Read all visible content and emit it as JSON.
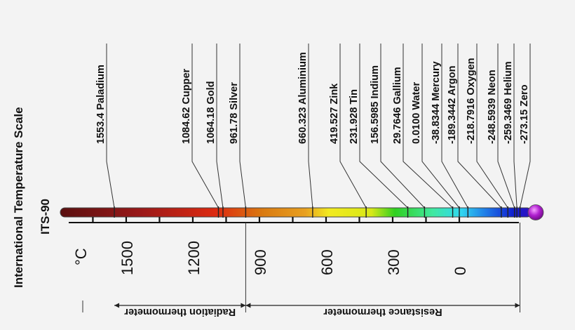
{
  "title": "International Temperature Scale",
  "subtitle": "ITS-90",
  "unit": "°C",
  "scale_labels": [
    "1500",
    "1200",
    "900",
    "600",
    "300",
    "0"
  ],
  "fixed_points": [
    {
      "label": "1553.4 Paladium",
      "value": 1553.4
    },
    {
      "label": "1084.62 Cupper",
      "value": 1084.62
    },
    {
      "label": "1064.18 Gold",
      "value": 1064.18
    },
    {
      "label": "961.78 Silver",
      "value": 961.78
    },
    {
      "label": "660.323 Aluminium",
      "value": 660.323
    },
    {
      "label": "419.527 Zink",
      "value": 419.527
    },
    {
      "label": "231.928 Tin",
      "value": 231.928
    },
    {
      "label": "156.5985 Indium",
      "value": 156.5985
    },
    {
      "label": "29.7646 Gallium",
      "value": 29.7646
    },
    {
      "label": "0.0100 Water",
      "value": 0.01
    },
    {
      "label": "-38.8344 Mercury",
      "value": -38.8344
    },
    {
      "label": "-189.3442 Argon",
      "value": -189.3442
    },
    {
      "label": "-218.7916 Oxygen",
      "value": -218.7916
    },
    {
      "label": "-248.5939 Neon",
      "value": -248.5939
    },
    {
      "label": "-259.3469 Helium",
      "value": -259.3469
    },
    {
      "label": "-273.15 Zero",
      "value": -273.15
    }
  ],
  "ranges": [
    {
      "label": "Radiation thermometer",
      "from": 1553.4,
      "to": 961.78
    },
    {
      "label": "Resistance thermometer",
      "from": 961.78,
      "to": -273.15
    }
  ]
}
